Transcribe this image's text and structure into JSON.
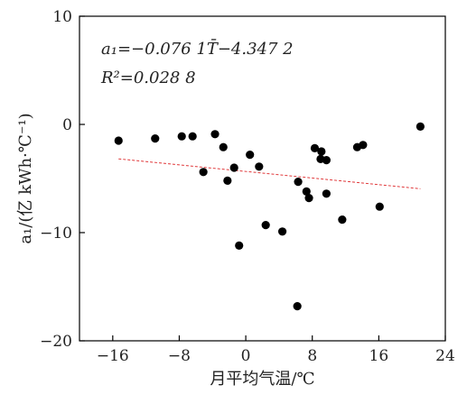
{
  "chart_data": {
    "type": "scatter",
    "xlabel": "月平均气温/℃",
    "ylabel": "a₁/(亿 kWh·℃⁻¹)",
    "xlim": [
      -20,
      24
    ],
    "ylim": [
      -20,
      10
    ],
    "xticks": [
      -16,
      -8,
      0,
      8,
      16,
      24
    ],
    "yticks": [
      10,
      0,
      -10,
      -20
    ],
    "x_tick_labels": [
      "−16",
      "−8",
      "0",
      "8",
      "16",
      "24"
    ],
    "y_tick_labels": [
      "10",
      "0",
      "−10",
      "−20"
    ],
    "annotations": {
      "equation": "a₁=−0.076 1T̄−4.347 2",
      "r2": "R²=0.028 8"
    },
    "points": [
      {
        "x": -15.3,
        "y": -1.5
      },
      {
        "x": -10.9,
        "y": -1.3
      },
      {
        "x": -7.7,
        "y": -1.1
      },
      {
        "x": -6.4,
        "y": -1.1
      },
      {
        "x": -5.1,
        "y": -4.4
      },
      {
        "x": -3.7,
        "y": -0.9
      },
      {
        "x": -2.7,
        "y": -2.1
      },
      {
        "x": -2.2,
        "y": -5.2
      },
      {
        "x": -1.4,
        "y": -4.0
      },
      {
        "x": -0.8,
        "y": -11.2
      },
      {
        "x": 0.5,
        "y": -2.8
      },
      {
        "x": 1.6,
        "y": -3.9
      },
      {
        "x": 2.4,
        "y": -9.3
      },
      {
        "x": 4.4,
        "y": -9.9
      },
      {
        "x": 6.2,
        "y": -16.8
      },
      {
        "x": 6.3,
        "y": -5.3
      },
      {
        "x": 7.3,
        "y": -6.2
      },
      {
        "x": 7.6,
        "y": -6.8
      },
      {
        "x": 8.3,
        "y": -2.2
      },
      {
        "x": 9.0,
        "y": -3.2
      },
      {
        "x": 9.1,
        "y": -2.5
      },
      {
        "x": 9.7,
        "y": -3.3
      },
      {
        "x": 9.7,
        "y": -6.4
      },
      {
        "x": 11.6,
        "y": -8.8
      },
      {
        "x": 13.4,
        "y": -2.1
      },
      {
        "x": 14.1,
        "y": -1.9
      },
      {
        "x": 16.1,
        "y": -7.6
      },
      {
        "x": 21.0,
        "y": -0.2
      }
    ],
    "trendline": {
      "slope": -0.0761,
      "intercept": -4.3472,
      "x_range": [
        -15.3,
        21.0
      ],
      "color": "#e0383a"
    },
    "marker_color": "#000000",
    "grid": false,
    "legend": "none"
  }
}
